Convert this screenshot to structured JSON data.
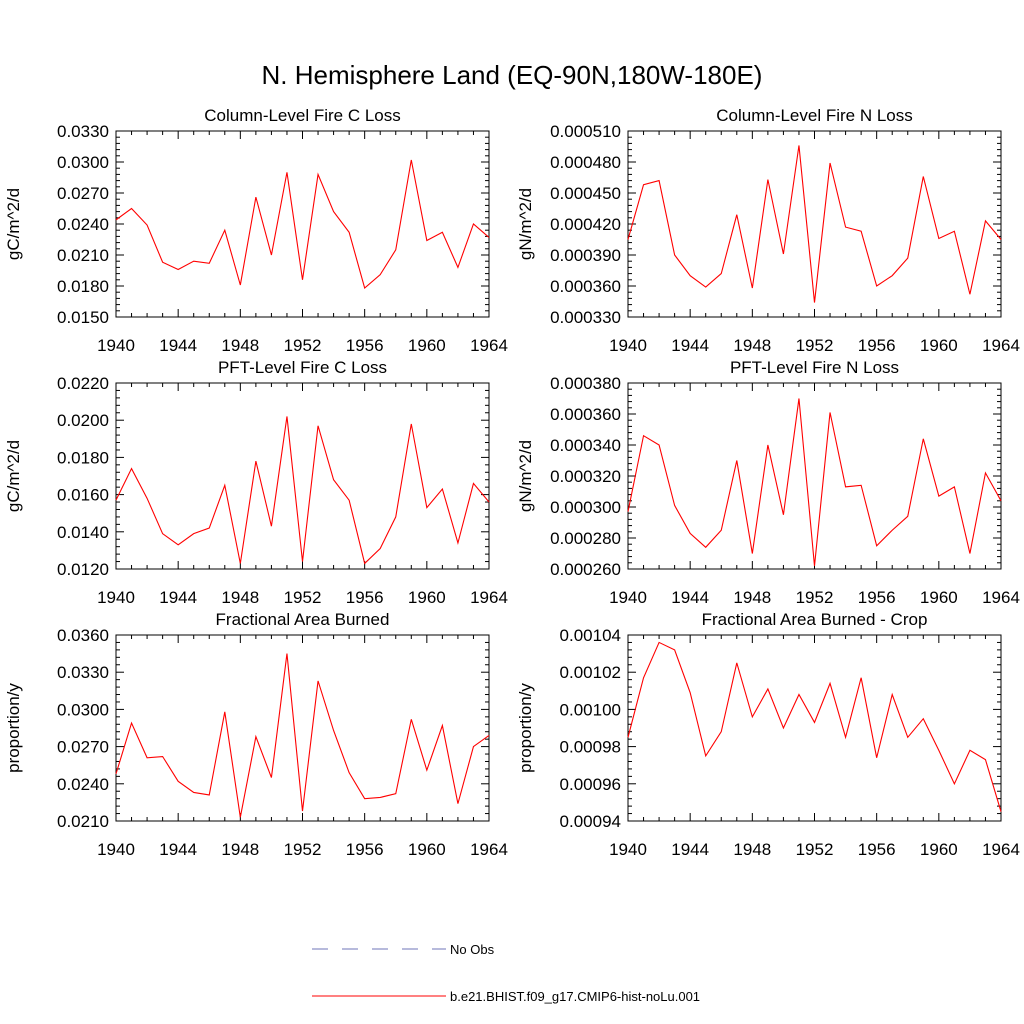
{
  "figure": {
    "title": "N. Hemisphere Land (EQ-90N,180W-180E)",
    "legend": [
      {
        "label": "No Obs",
        "color": "#6f74b8",
        "style": "dashed"
      },
      {
        "label": "b.e21.BHIST.f09_g17.CMIP6-hist-noLu.001",
        "color": "#ff0000",
        "style": "solid"
      }
    ]
  },
  "chart_data": [
    {
      "type": "line",
      "title": "Column-Level Fire C Loss",
      "ylabel": "gC/m^2/d",
      "xlim": [
        1940,
        1964
      ],
      "ylim": [
        0.015,
        0.033
      ],
      "xticks": [
        "1940",
        "1944",
        "1948",
        "1952",
        "1956",
        "1960",
        "1964"
      ],
      "yticks": [
        "0.0150",
        "0.0180",
        "0.0210",
        "0.0240",
        "0.0270",
        "0.0300",
        "0.0330"
      ],
      "x": [
        1940,
        1941,
        1942,
        1943,
        1944,
        1945,
        1946,
        1947,
        1948,
        1949,
        1950,
        1951,
        1952,
        1953,
        1954,
        1955,
        1956,
        1957,
        1958,
        1959,
        1960,
        1961,
        1962,
        1963,
        1964
      ],
      "series": [
        {
          "color": "#ff0000",
          "values": [
            0.0244,
            0.0255,
            0.0239,
            0.0203,
            0.0196,
            0.0204,
            0.0202,
            0.0234,
            0.0181,
            0.0266,
            0.021,
            0.029,
            0.0186,
            0.0288,
            0.0252,
            0.0232,
            0.0178,
            0.0191,
            0.0215,
            0.0302,
            0.0224,
            0.0232,
            0.0198,
            0.024,
            0.0227
          ]
        }
      ]
    },
    {
      "type": "line",
      "title": "Column-Level Fire N Loss",
      "ylabel": "gN/m^2/d",
      "xlim": [
        1940,
        1964
      ],
      "ylim": [
        0.00033,
        0.00051
      ],
      "xticks": [
        "1940",
        "1944",
        "1948",
        "1952",
        "1956",
        "1960",
        "1964"
      ],
      "yticks": [
        "0.000330",
        "0.000360",
        "0.000390",
        "0.000420",
        "0.000450",
        "0.000480",
        "0.000510"
      ],
      "x": [
        1940,
        1941,
        1942,
        1943,
        1944,
        1945,
        1946,
        1947,
        1948,
        1949,
        1950,
        1951,
        1952,
        1953,
        1954,
        1955,
        1956,
        1957,
        1958,
        1959,
        1960,
        1961,
        1962,
        1963,
        1964
      ],
      "series": [
        {
          "color": "#ff0000",
          "values": [
            0.000405,
            0.000458,
            0.000462,
            0.00039,
            0.00037,
            0.000359,
            0.000372,
            0.000429,
            0.000358,
            0.000463,
            0.000391,
            0.000496,
            0.000344,
            0.000479,
            0.000417,
            0.000413,
            0.00036,
            0.00037,
            0.000387,
            0.000466,
            0.000406,
            0.000413,
            0.000352,
            0.000423,
            0.000405
          ]
        }
      ]
    },
    {
      "type": "line",
      "title": "PFT-Level Fire C Loss",
      "ylabel": "gC/m^2/d",
      "xlim": [
        1940,
        1964
      ],
      "ylim": [
        0.012,
        0.022
      ],
      "xticks": [
        "1940",
        "1944",
        "1948",
        "1952",
        "1956",
        "1960",
        "1964"
      ],
      "yticks": [
        "0.0120",
        "0.0140",
        "0.0160",
        "0.0180",
        "0.0200",
        "0.0220"
      ],
      "x": [
        1940,
        1941,
        1942,
        1943,
        1944,
        1945,
        1946,
        1947,
        1948,
        1949,
        1950,
        1951,
        1952,
        1953,
        1954,
        1955,
        1956,
        1957,
        1958,
        1959,
        1960,
        1961,
        1962,
        1963,
        1964
      ],
      "series": [
        {
          "color": "#ff0000",
          "values": [
            0.0157,
            0.0174,
            0.0158,
            0.0139,
            0.0133,
            0.0139,
            0.0142,
            0.0165,
            0.0123,
            0.0178,
            0.0143,
            0.0202,
            0.0124,
            0.0197,
            0.0168,
            0.0157,
            0.0123,
            0.0131,
            0.0148,
            0.0198,
            0.0153,
            0.0163,
            0.0134,
            0.0166,
            0.0156
          ]
        }
      ]
    },
    {
      "type": "line",
      "title": "PFT-Level Fire N Loss",
      "ylabel": "gN/m^2/d",
      "xlim": [
        1940,
        1964
      ],
      "ylim": [
        0.00026,
        0.00038
      ],
      "xticks": [
        "1940",
        "1944",
        "1948",
        "1952",
        "1956",
        "1960",
        "1964"
      ],
      "yticks": [
        "0.000260",
        "0.000280",
        "0.000300",
        "0.000320",
        "0.000340",
        "0.000360",
        "0.000380"
      ],
      "x": [
        1940,
        1941,
        1942,
        1943,
        1944,
        1945,
        1946,
        1947,
        1948,
        1949,
        1950,
        1951,
        1952,
        1953,
        1954,
        1955,
        1956,
        1957,
        1958,
        1959,
        1960,
        1961,
        1962,
        1963,
        1964
      ],
      "series": [
        {
          "color": "#ff0000",
          "values": [
            0.000297,
            0.000346,
            0.00034,
            0.000301,
            0.000283,
            0.000274,
            0.000285,
            0.00033,
            0.00027,
            0.00034,
            0.000295,
            0.00037,
            0.000262,
            0.000361,
            0.000313,
            0.000314,
            0.000275,
            0.000285,
            0.000294,
            0.000344,
            0.000307,
            0.000313,
            0.00027,
            0.000322,
            0.000304
          ]
        }
      ]
    },
    {
      "type": "line",
      "title": "Fractional Area Burned",
      "ylabel": "proportion/y",
      "xlim": [
        1940,
        1964
      ],
      "ylim": [
        0.021,
        0.036
      ],
      "xticks": [
        "1940",
        "1944",
        "1948",
        "1952",
        "1956",
        "1960",
        "1964"
      ],
      "yticks": [
        "0.0210",
        "0.0240",
        "0.0270",
        "0.0300",
        "0.0330",
        "0.0360"
      ],
      "x": [
        1940,
        1941,
        1942,
        1943,
        1944,
        1945,
        1946,
        1947,
        1948,
        1949,
        1950,
        1951,
        1952,
        1953,
        1954,
        1955,
        1956,
        1957,
        1958,
        1959,
        1960,
        1961,
        1962,
        1963,
        1964
      ],
      "series": [
        {
          "color": "#ff0000",
          "values": [
            0.0248,
            0.0289,
            0.0261,
            0.0262,
            0.0242,
            0.0233,
            0.0231,
            0.0298,
            0.0213,
            0.0278,
            0.0245,
            0.0345,
            0.0218,
            0.0323,
            0.0283,
            0.0249,
            0.0228,
            0.0229,
            0.0232,
            0.0292,
            0.0251,
            0.0287,
            0.0224,
            0.027,
            0.0279
          ]
        }
      ]
    },
    {
      "type": "line",
      "title": "Fractional Area Burned - Crop",
      "ylabel": "proportion/y",
      "xlim": [
        1940,
        1964
      ],
      "ylim": [
        0.00094,
        0.00104
      ],
      "xticks": [
        "1940",
        "1944",
        "1948",
        "1952",
        "1956",
        "1960",
        "1964"
      ],
      "yticks": [
        "0.00094",
        "0.00096",
        "0.00098",
        "0.00100",
        "0.00102",
        "0.00104"
      ],
      "x": [
        1940,
        1941,
        1942,
        1943,
        1944,
        1945,
        1946,
        1947,
        1948,
        1949,
        1950,
        1951,
        1952,
        1953,
        1954,
        1955,
        1956,
        1957,
        1958,
        1959,
        1960,
        1961,
        1962,
        1963,
        1964
      ],
      "series": [
        {
          "color": "#ff0000",
          "values": [
            0.000985,
            0.001017,
            0.001036,
            0.001032,
            0.001009,
            0.000975,
            0.000988,
            0.001025,
            0.000996,
            0.001011,
            0.00099,
            0.001008,
            0.000993,
            0.001014,
            0.000985,
            0.001017,
            0.000974,
            0.001008,
            0.000985,
            0.000995,
            0.000978,
            0.00096,
            0.000978,
            0.000973,
            0.000945
          ]
        }
      ]
    }
  ]
}
